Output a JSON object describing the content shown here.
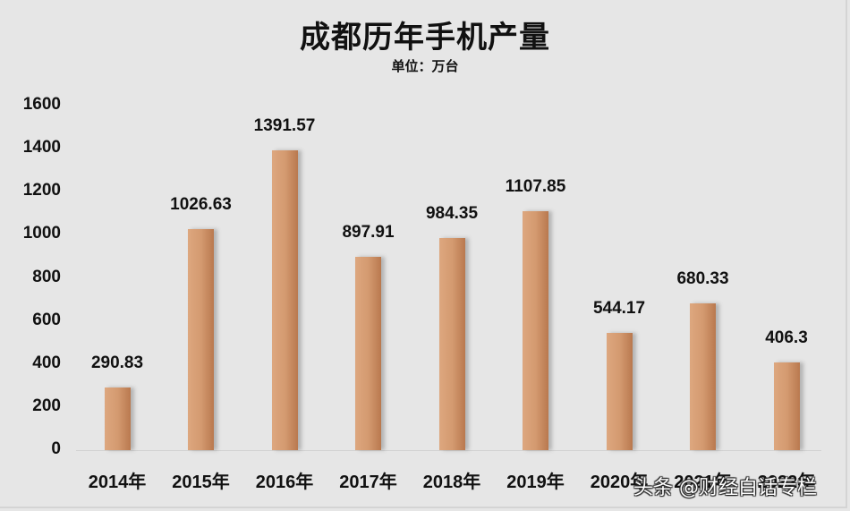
{
  "title": "成都历年手机产量",
  "subtitle": "单位：万台",
  "watermark": "头条 @财经白话专栏",
  "colors": {
    "background": "#e6e6e6",
    "bar_light": "#dda77f",
    "bar_dark": "#b9794f",
    "text": "#111111"
  },
  "chart_data": {
    "type": "bar",
    "title": "成都历年手机产量",
    "subtitle": "单位：万台",
    "xlabel": "",
    "ylabel": "",
    "categories": [
      "2014年",
      "2015年",
      "2016年",
      "2017年",
      "2018年",
      "2019年",
      "2020年",
      "2021年",
      "2022年"
    ],
    "values": [
      290.83,
      1026.63,
      1391.57,
      897.91,
      984.35,
      1107.85,
      544.17,
      680.33,
      406.3
    ],
    "value_labels": [
      "290.83",
      "1026.63",
      "1391.57",
      "897.91",
      "984.35",
      "1107.85",
      "544.17",
      "680.33",
      "406.3"
    ],
    "ylim": [
      0,
      1600
    ],
    "yticks": [
      0,
      200,
      400,
      600,
      800,
      1000,
      1200,
      1400,
      1600
    ],
    "ytick_labels": [
      "0",
      "200",
      "400",
      "600",
      "800",
      "1000",
      "1200",
      "1400",
      "1600"
    ],
    "grid": false,
    "legend": null,
    "data_labels": true
  }
}
